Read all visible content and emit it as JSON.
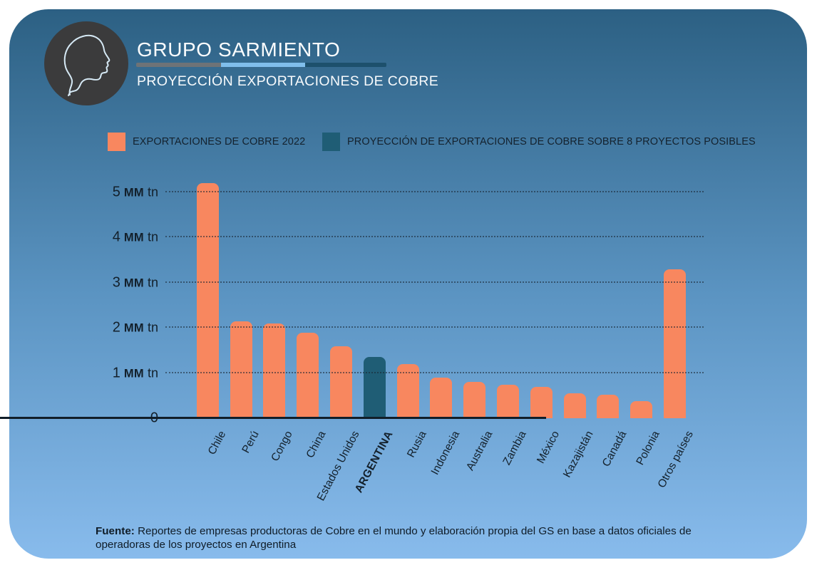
{
  "header": {
    "title": "GRUPO SARMIENTO",
    "subtitle": "PROYECCIÓN EXPORTACIONES DE COBRE",
    "logo": "sarmiento-profile-portrait",
    "separator_colors": [
      "#6E7377",
      "#80BEEB",
      "#1D506C"
    ]
  },
  "legend": [
    {
      "label": "EXPORTACIONES DE COBRE 2022",
      "color": "#F8875F"
    },
    {
      "label": "PROYECCIÓN DE EXPORTACIONES DE COBRE SOBRE 8 PROYECTOS POSIBLES",
      "color": "#1F5D75"
    }
  ],
  "chart_data": {
    "type": "bar",
    "title": "PROYECCIÓN EXPORTACIONES DE COBRE",
    "unit": "MM tn",
    "categories": [
      "Chile",
      "Perú",
      "Congo",
      "China",
      "Estados Unidos",
      "ARGENTINA",
      "Rusia",
      "Indonesia",
      "Australia",
      "Zambia",
      "México",
      "Kazajistán",
      "Canadá",
      "Polonia",
      "Otros países"
    ],
    "values": [
      5.2,
      2.15,
      2.1,
      1.9,
      1.6,
      1.35,
      1.2,
      0.9,
      0.8,
      0.75,
      0.7,
      0.55,
      0.52,
      0.38,
      3.3
    ],
    "highlight_index": 5,
    "bar_color": "#F8875F",
    "highlight_color": "#1F5D75",
    "ylim": [
      0,
      5.2
    ],
    "yticks": [
      {
        "value": 5,
        "label": "5 MM tn"
      },
      {
        "value": 4,
        "label": "4 MM tn"
      },
      {
        "value": 3,
        "label": "3 MM tn"
      },
      {
        "value": 2,
        "label": "2 MM tn"
      },
      {
        "value": 1,
        "label": "1 MM tn"
      },
      {
        "value": 0,
        "label": "0"
      }
    ],
    "grid": "horizontal-dotted",
    "legend_position": "top",
    "x_label_rotation_deg": -62
  },
  "footer": {
    "label": "Fuente:",
    "text": "Reportes de empresas productoras de Cobre en el mundo y elaboración propia del GS en base a datos oficiales de operadoras de los proyectos en Argentina"
  },
  "colors": {
    "background_top": "#2C6083",
    "background_bottom": "#88BBEC",
    "text_dark": "#13202B",
    "text_light": "#FBFDFE",
    "axis": "#111E29",
    "logo_circle": "#3B3B3C",
    "logo_outline": "#D6E9F5"
  }
}
